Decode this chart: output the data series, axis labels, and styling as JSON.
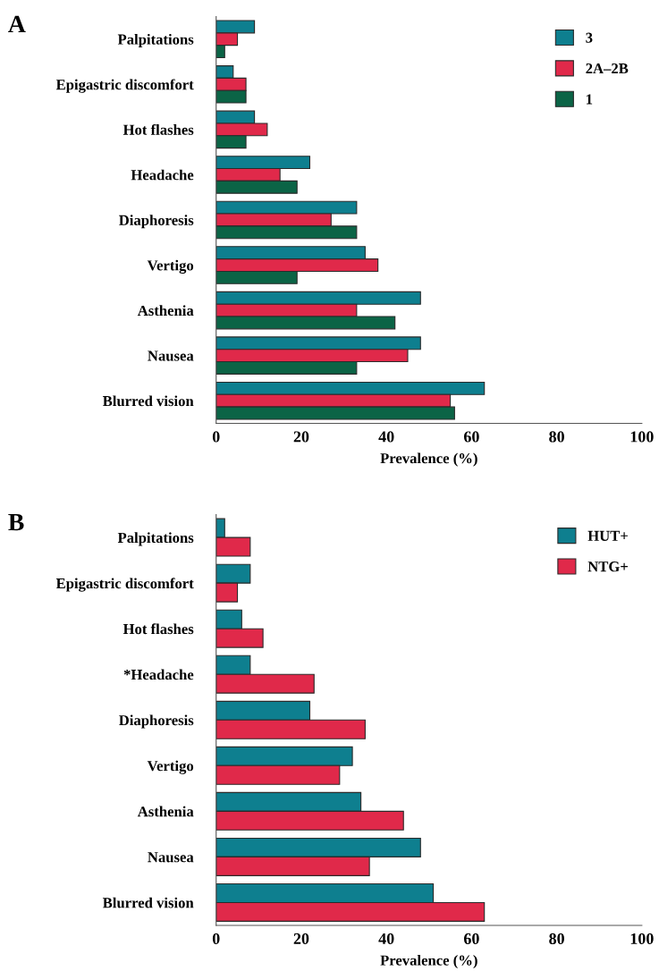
{
  "chart_data": [
    {
      "type": "bar",
      "orientation": "horizontal",
      "title": "A",
      "xlabel": "Prevalence (%)",
      "categories": [
        "Palpitations",
        "Epigastric discomfort",
        "Hot flashes",
        "Headache",
        "Diaphoresis",
        "Vertigo",
        "Asthenia",
        "Nausea",
        "Blurred vision"
      ],
      "series": [
        {
          "name": "3",
          "color": "#0e7f8f",
          "values": [
            9,
            4,
            9,
            22,
            33,
            35,
            48,
            48,
            63
          ]
        },
        {
          "name": "2A–2B",
          "color": "#e0294a",
          "values": [
            5,
            7,
            12,
            15,
            27,
            38,
            33,
            45,
            55
          ]
        },
        {
          "name": "1",
          "color": "#0b6446",
          "values": [
            2,
            7,
            7,
            19,
            33,
            19,
            42,
            33,
            56
          ]
        }
      ],
      "xlim": [
        0,
        100
      ],
      "xticks": [
        0,
        20,
        40,
        60,
        80,
        100
      ],
      "grid": false,
      "legend": "top right"
    },
    {
      "type": "bar",
      "orientation": "horizontal",
      "title": "B",
      "xlabel": "Prevalence (%)",
      "categories": [
        "Palpitations",
        "Epigastric discomfort",
        "Hot flashes",
        "*Headache",
        "Diaphoresis",
        "Vertigo",
        "Asthenia",
        "Nausea",
        "Blurred vision"
      ],
      "series": [
        {
          "name": "HUT+",
          "color": "#0e7f8f",
          "values": [
            2,
            8,
            6,
            8,
            22,
            32,
            34,
            48,
            51
          ]
        },
        {
          "name": "NTG+",
          "color": "#e0294a",
          "values": [
            8,
            5,
            11,
            23,
            35,
            29,
            44,
            36,
            63
          ]
        }
      ],
      "xlim": [
        0,
        100
      ],
      "xticks": [
        0,
        20,
        40,
        60,
        80,
        100
      ],
      "grid": false,
      "legend": "top right"
    }
  ]
}
